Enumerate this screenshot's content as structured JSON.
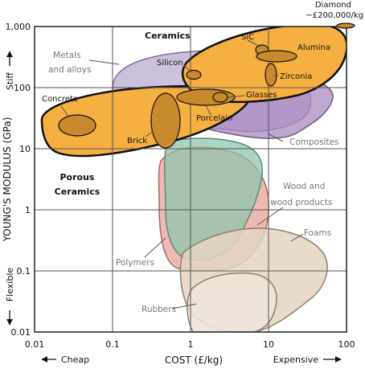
{
  "chart_data": {
    "type": "scatter",
    "title": "",
    "xlabel": "COST (£/kg)",
    "ylabel": "YOUNG'S MODULUS (GPa)",
    "xscale": "log",
    "yscale": "log",
    "xlim": [
      0.01,
      100
    ],
    "ylim": [
      0.01,
      1000
    ],
    "x_ticks": [
      "0.01",
      "0.1",
      "1",
      "10",
      "100"
    ],
    "y_ticks": [
      "0.01",
      "0.1",
      "1",
      "10",
      "100",
      "1,000"
    ],
    "grid": true,
    "x_end_labels": {
      "low": "Cheap",
      "high": "Expensive"
    },
    "y_end_labels": {
      "low": "Flexible",
      "high": "Stiff"
    },
    "colors": {
      "ceramics": "#f5b041",
      "ceramic_bubble": "#c98a2e",
      "metals": "#b7a6cf",
      "composites": "#a98ac0",
      "polymers": "#e9a9a0",
      "wood": "#8fc5ad",
      "foams": "#e4d5c2",
      "rubbers": "#eee4d8",
      "grid": "#555555"
    },
    "families": [
      {
        "name": "Ceramics",
        "x_range": [
          1,
          100
        ],
        "y_range": [
          80,
          1000
        ]
      },
      {
        "name": "Porous Ceramics",
        "x_range": [
          0.01,
          10
        ],
        "y_range": [
          10,
          150
        ]
      },
      {
        "name": "Metals and alloys",
        "x_range": [
          0.1,
          12
        ],
        "y_range": [
          30,
          300
        ]
      },
      {
        "name": "Composites",
        "x_range": [
          0.5,
          60
        ],
        "y_range": [
          8,
          150
        ]
      },
      {
        "name": "Polymers",
        "x_range": [
          0.3,
          5
        ],
        "y_range": [
          0.1,
          20
        ]
      },
      {
        "name": "Wood and wood products",
        "x_range": [
          0.5,
          5
        ],
        "y_range": [
          0.1,
          20
        ]
      },
      {
        "name": "Foams",
        "x_range": [
          0.5,
          60
        ],
        "y_range": [
          0.01,
          1
        ]
      },
      {
        "name": "Rubbers",
        "x_range": [
          1,
          50
        ],
        "y_range": [
          0.01,
          0.1
        ]
      }
    ],
    "materials": [
      {
        "name": "Diamond",
        "note": "~£200,000/kg",
        "x": 100,
        "y": 1100
      },
      {
        "name": "SiC",
        "x": 3.5,
        "y": 400
      },
      {
        "name": "Alumina",
        "x": 4.5,
        "y": 350
      },
      {
        "name": "Silicon",
        "x": 1.1,
        "y": 160
      },
      {
        "name": "Zirconia",
        "x": 6.5,
        "y": 160
      },
      {
        "name": "Glasses",
        "x": 2.6,
        "y": 70
      },
      {
        "name": "Porcelain",
        "x": 1.7,
        "y": 70
      },
      {
        "name": "Concrete",
        "x": 0.025,
        "y": 25
      },
      {
        "name": "Brick",
        "x": 0.5,
        "y": 30
      }
    ]
  }
}
